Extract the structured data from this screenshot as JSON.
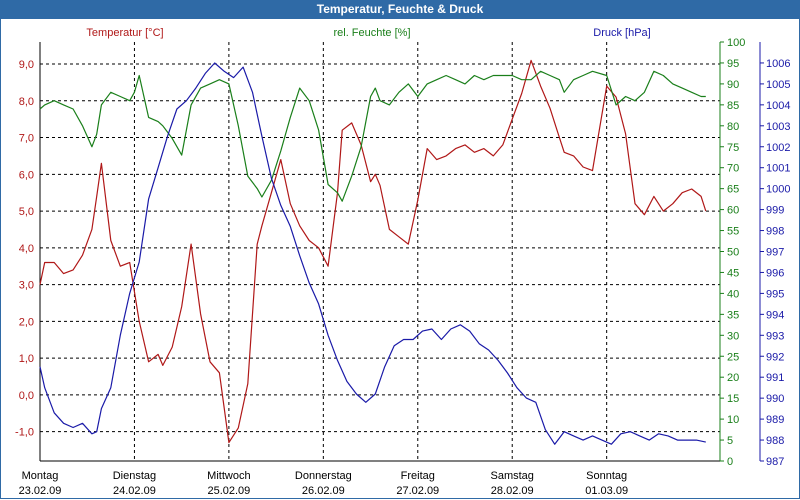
{
  "window": {
    "title": "Temperatur, Feuchte & Druck"
  },
  "colors": {
    "temp": "#b01818",
    "hum": "#1a7f1a",
    "press": "#1a1aa8",
    "grid": "#000000"
  },
  "chart_data": {
    "type": "line",
    "title": "Temperatur, Feuchte & Druck",
    "grid": true,
    "x_categories": [
      {
        "day": "Montag",
        "date": "23.02.09"
      },
      {
        "day": "Dienstag",
        "date": "24.02.09"
      },
      {
        "day": "Mittwoch",
        "date": "25.02.09"
      },
      {
        "day": "Donnerstag",
        "date": "26.02.09"
      },
      {
        "day": "Freitag",
        "date": "27.02.09"
      },
      {
        "day": "Samstag",
        "date": "28.02.09"
      },
      {
        "day": "Sonntag",
        "date": "01.03.09"
      }
    ],
    "x_range": [
      0,
      7.2
    ],
    "axes": [
      {
        "id": "temp",
        "label": "Temperatur [°C]",
        "ylim": [
          -1.8,
          9.6
        ],
        "ticks": [
          "9,0",
          "8,0",
          "7,0",
          "6,0",
          "5,0",
          "4,0",
          "3,0",
          "2,0",
          "1,0",
          "0,0",
          "-1,0"
        ],
        "tick_values": [
          9,
          8,
          7,
          6,
          5,
          4,
          3,
          2,
          1,
          0,
          -1
        ]
      },
      {
        "id": "hum",
        "label": "rel. Feuchte [%]",
        "ylim": [
          0,
          100
        ],
        "ticks": [
          "100",
          "95",
          "90",
          "85",
          "80",
          "75",
          "70",
          "65",
          "60",
          "55",
          "50",
          "45",
          "40",
          "35",
          "30",
          "25",
          "20",
          "15",
          "10",
          "5",
          "0"
        ],
        "tick_values": [
          100,
          95,
          90,
          85,
          80,
          75,
          70,
          65,
          60,
          55,
          50,
          45,
          40,
          35,
          30,
          25,
          20,
          15,
          10,
          5,
          0
        ]
      },
      {
        "id": "press",
        "label": "Druck [hPa]",
        "ylim": [
          987,
          1007
        ],
        "ticks": [
          "1006",
          "1005",
          "1004",
          "1003",
          "1002",
          "1001",
          "1000",
          "999",
          "998",
          "997",
          "996",
          "995",
          "994",
          "993",
          "992",
          "991",
          "990",
          "989",
          "988",
          "987"
        ],
        "tick_values": [
          1006,
          1005,
          1004,
          1003,
          1002,
          1001,
          1000,
          999,
          998,
          997,
          996,
          995,
          994,
          993,
          992,
          991,
          990,
          989,
          988,
          987
        ]
      }
    ],
    "series": [
      {
        "name": "Temperatur",
        "axis": "temp",
        "x": [
          0,
          0.05,
          0.15,
          0.25,
          0.35,
          0.45,
          0.55,
          0.6,
          0.65,
          0.75,
          0.85,
          0.95,
          1.05,
          1.15,
          1.25,
          1.3,
          1.4,
          1.5,
          1.6,
          1.7,
          1.8,
          1.9,
          2.0,
          2.1,
          2.2,
          2.3,
          2.35,
          2.45,
          2.55,
          2.65,
          2.75,
          2.85,
          2.95,
          3.05,
          3.15,
          3.2,
          3.3,
          3.4,
          3.5,
          3.55,
          3.6,
          3.7,
          3.8,
          3.9,
          4.0,
          4.1,
          4.2,
          4.3,
          4.4,
          4.5,
          4.6,
          4.7,
          4.8,
          4.9,
          5.0,
          5.1,
          5.2,
          5.3,
          5.4,
          5.5,
          5.55,
          5.65,
          5.75,
          5.85,
          6.0,
          6.1,
          6.2,
          6.3,
          6.4,
          6.5,
          6.6,
          6.7,
          6.8,
          6.9,
          7.0,
          7.05
        ],
        "values": [
          3.0,
          3.6,
          3.6,
          3.3,
          3.4,
          3.8,
          4.5,
          5.4,
          6.3,
          4.2,
          3.5,
          3.6,
          2.0,
          0.9,
          1.1,
          0.8,
          1.3,
          2.4,
          4.1,
          2.2,
          0.9,
          0.6,
          -1.3,
          -0.9,
          0.3,
          4.1,
          4.6,
          5.5,
          6.4,
          5.2,
          4.6,
          4.2,
          4.0,
          3.5,
          5.5,
          7.2,
          7.4,
          6.8,
          5.8,
          6.0,
          5.7,
          4.5,
          4.3,
          4.1,
          5.3,
          6.7,
          6.4,
          6.5,
          6.7,
          6.8,
          6.6,
          6.7,
          6.5,
          6.8,
          7.5,
          8.2,
          9.1,
          8.4,
          7.8,
          7.0,
          6.6,
          6.5,
          6.2,
          6.1,
          8.4,
          8.1,
          7.1,
          5.2,
          4.9,
          5.4,
          5.0,
          5.2,
          5.5,
          5.6,
          5.4,
          5.0
        ]
      },
      {
        "name": "rel. Feuchte",
        "axis": "hum",
        "x": [
          0,
          0.05,
          0.15,
          0.25,
          0.35,
          0.45,
          0.55,
          0.6,
          0.65,
          0.75,
          0.85,
          0.95,
          1.0,
          1.05,
          1.15,
          1.25,
          1.3,
          1.4,
          1.5,
          1.6,
          1.7,
          1.8,
          1.9,
          2.0,
          2.1,
          2.2,
          2.3,
          2.35,
          2.45,
          2.55,
          2.65,
          2.75,
          2.85,
          2.95,
          3.05,
          3.15,
          3.2,
          3.3,
          3.4,
          3.5,
          3.55,
          3.6,
          3.7,
          3.8,
          3.9,
          4.0,
          4.1,
          4.2,
          4.3,
          4.4,
          4.5,
          4.6,
          4.7,
          4.8,
          4.9,
          5.0,
          5.1,
          5.2,
          5.3,
          5.4,
          5.5,
          5.55,
          5.65,
          5.75,
          5.85,
          6.0,
          6.1,
          6.2,
          6.3,
          6.4,
          6.5,
          6.6,
          6.7,
          6.8,
          6.9,
          7.0,
          7.05
        ],
        "values": [
          84,
          85,
          86,
          85,
          84,
          80,
          75,
          78,
          85,
          88,
          87,
          86,
          88,
          92,
          82,
          81,
          80,
          77,
          73,
          85,
          89,
          90,
          91,
          90,
          80,
          68,
          65,
          63,
          67,
          74,
          82,
          89,
          86,
          79,
          66,
          64,
          62,
          68,
          75,
          87,
          89,
          86,
          85,
          88,
          90,
          87,
          90,
          91,
          92,
          91,
          90,
          92,
          91,
          92,
          92,
          92,
          91,
          91,
          93,
          92,
          91,
          88,
          91,
          92,
          93,
          92,
          85,
          87,
          86,
          88,
          93,
          92,
          90,
          89,
          88,
          87,
          87
        ]
      },
      {
        "name": "Druck",
        "axis": "press",
        "x": [
          0,
          0.05,
          0.15,
          0.25,
          0.35,
          0.45,
          0.55,
          0.6,
          0.65,
          0.75,
          0.85,
          0.95,
          1.05,
          1.15,
          1.25,
          1.35,
          1.45,
          1.55,
          1.65,
          1.75,
          1.85,
          1.95,
          2.05,
          2.15,
          2.25,
          2.35,
          2.45,
          2.55,
          2.65,
          2.75,
          2.85,
          2.95,
          3.05,
          3.15,
          3.25,
          3.35,
          3.45,
          3.55,
          3.65,
          3.75,
          3.85,
          3.95,
          4.05,
          4.15,
          4.25,
          4.35,
          4.45,
          4.55,
          4.65,
          4.75,
          4.85,
          4.95,
          5.05,
          5.15,
          5.25,
          5.35,
          5.45,
          5.55,
          5.65,
          5.75,
          5.85,
          5.95,
          6.05,
          6.15,
          6.25,
          6.35,
          6.45,
          6.55,
          6.65,
          6.75,
          6.85,
          6.95,
          7.05
        ],
        "values": [
          991.5,
          990.5,
          989.3,
          988.8,
          988.6,
          988.8,
          988.3,
          988.4,
          989.5,
          990.5,
          993.0,
          995.0,
          996.5,
          999.5,
          1001.0,
          1002.5,
          1003.8,
          1004.2,
          1004.8,
          1005.5,
          1006.0,
          1005.6,
          1005.3,
          1005.8,
          1004.6,
          1002.5,
          1000.5,
          999.2,
          998.2,
          996.8,
          995.5,
          994.5,
          993.0,
          991.8,
          990.8,
          990.2,
          989.8,
          990.2,
          991.5,
          992.5,
          992.8,
          992.8,
          993.2,
          993.3,
          992.8,
          993.3,
          993.5,
          993.2,
          992.6,
          992.3,
          991.8,
          991.2,
          990.5,
          990.0,
          989.8,
          988.5,
          987.8,
          988.4,
          988.2,
          988.0,
          988.2,
          988.0,
          987.8,
          988.3,
          988.4,
          988.2,
          988.0,
          988.3,
          988.2,
          988.0,
          988.0,
          988.0,
          987.9
        ]
      }
    ]
  }
}
